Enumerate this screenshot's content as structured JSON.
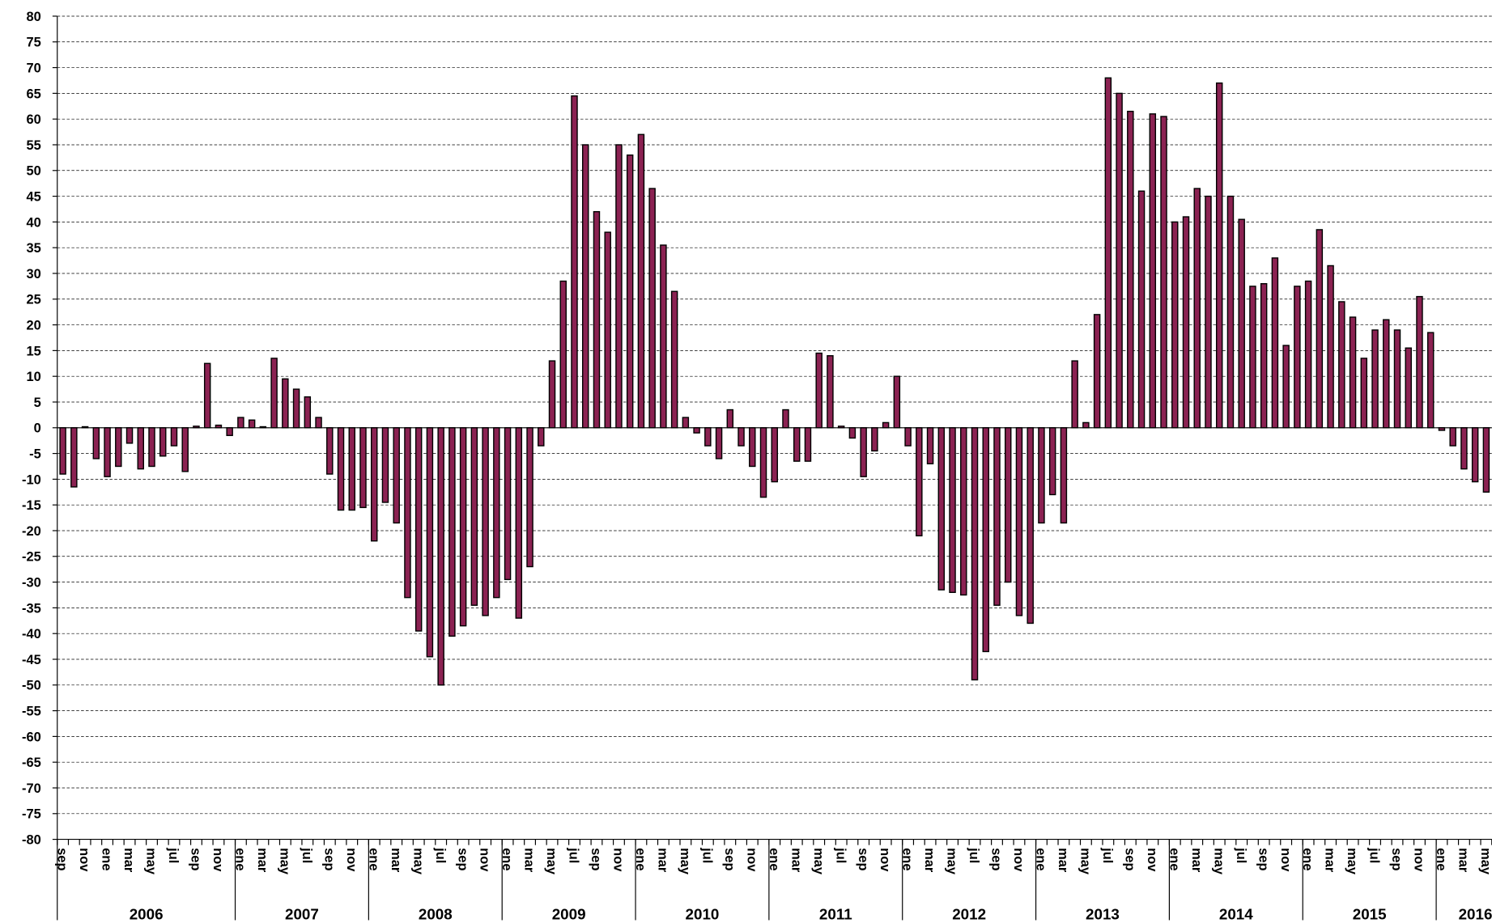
{
  "chart_data": {
    "type": "bar",
    "color": "#8b2252",
    "grid": true,
    "ylim": [
      -80,
      80
    ],
    "yticks": [
      -80,
      -75,
      -70,
      -65,
      -60,
      -55,
      -50,
      -45,
      -40,
      -35,
      -30,
      -25,
      -20,
      -15,
      -10,
      -5,
      0,
      5,
      10,
      15,
      20,
      25,
      30,
      35,
      40,
      45,
      50,
      55,
      60,
      65,
      70,
      75,
      80
    ],
    "categories": [
      "sep",
      null,
      "nov",
      null,
      "ene",
      null,
      "mar",
      null,
      "may",
      null,
      "jul",
      null,
      "sep",
      null,
      "nov",
      null,
      "ene",
      null,
      "mar",
      null,
      "may",
      null,
      "jul",
      null,
      "sep",
      null,
      "nov",
      null,
      "ene",
      null,
      "mar",
      null,
      "may",
      null,
      "jul",
      null,
      "sep",
      null,
      "nov",
      null,
      "ene",
      null,
      "mar",
      null,
      "may",
      null,
      "jul",
      null,
      "sep",
      null,
      "nov",
      null,
      "ene",
      null,
      "mar",
      null,
      "may",
      null,
      "jul",
      null,
      "sep",
      null,
      "nov",
      null,
      "ene",
      null,
      "mar",
      null,
      "may",
      null,
      "jul",
      null,
      "sep",
      null,
      "nov",
      null,
      "ene",
      null,
      "mar",
      null,
      "may",
      null,
      "jul",
      null,
      "sep",
      null,
      "nov",
      null,
      "ene",
      null,
      "mar",
      null,
      "may",
      null,
      "jul",
      null,
      "sep",
      null,
      "nov",
      null,
      "ene",
      null,
      "mar",
      null,
      "may",
      null,
      "jul",
      null,
      "sep",
      null,
      "nov",
      null,
      "ene",
      null,
      "mar",
      null,
      "may",
      null,
      "jul",
      null,
      "sep",
      null,
      "nov",
      null,
      "ene",
      null,
      "mar",
      null,
      "may"
    ],
    "years": [
      "2006",
      "2007",
      "2008",
      "2009",
      "2010",
      "2011",
      "2012",
      "2013",
      "2014",
      "2015",
      "2016"
    ],
    "values": [
      -9,
      -11.5,
      0.2,
      -6,
      -9.5,
      -7.5,
      -3,
      -8,
      -7.5,
      -5.5,
      -3.5,
      -8.5,
      0.3,
      12.5,
      0.5,
      -1.5,
      2,
      1.5,
      0.2,
      13.5,
      9.5,
      7.5,
      6,
      2,
      -9,
      -16,
      -16,
      -15.5,
      -22,
      -14.5,
      -18.5,
      -33,
      -39.5,
      -44.5,
      -50,
      -40.5,
      -38.5,
      -34.5,
      -36.5,
      -33,
      -29.5,
      -37,
      -27,
      -3.5,
      13,
      28.5,
      64.5,
      55,
      42,
      38,
      55,
      53,
      57,
      46.5,
      35.5,
      26.5,
      2,
      -1,
      -3.5,
      -6,
      3.5,
      -3.5,
      -7.5,
      -13.5,
      -10.5,
      3.5,
      -6.5,
      -6.5,
      14.5,
      14,
      0.3,
      -2,
      -9.5,
      -4.5,
      1,
      10,
      -3.5,
      -21,
      -7,
      -31.5,
      -32,
      -32.5,
      -49,
      -43.5,
      -34.5,
      -30,
      -36.5,
      -38,
      -18.5,
      -13,
      -18.5,
      13,
      1,
      22,
      68,
      65,
      61.5,
      46,
      61,
      60.5,
      40,
      41,
      46.5,
      45,
      67,
      45,
      40.5,
      27.5,
      28,
      33,
      16,
      27.5,
      28.5,
      38.5,
      31.5,
      24.5,
      21.5,
      13.5,
      19,
      21,
      19,
      15.5,
      25.5,
      18.5,
      -0.5,
      -3.5,
      -8,
      -10.5,
      -12.5
    ]
  }
}
